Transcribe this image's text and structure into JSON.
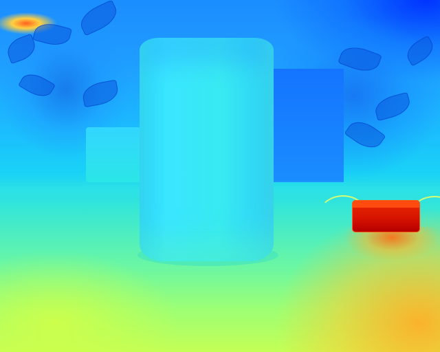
{
  "image": {
    "kind": "false-color depth map",
    "colors": {
      "far": "#0033ff",
      "mid": "#2ad3ff",
      "near": "#c4ff55",
      "nearest": "#d81400"
    }
  },
  "objects": [
    {
      "name": "jar",
      "color": "#38eaf2"
    },
    {
      "name": "plant-left",
      "color": "#1b8dff"
    },
    {
      "name": "plant-right",
      "color": "#1474ff"
    },
    {
      "name": "red-device",
      "color": "#d81400"
    },
    {
      "name": "table-surface",
      "color": "#9dff74"
    }
  ]
}
